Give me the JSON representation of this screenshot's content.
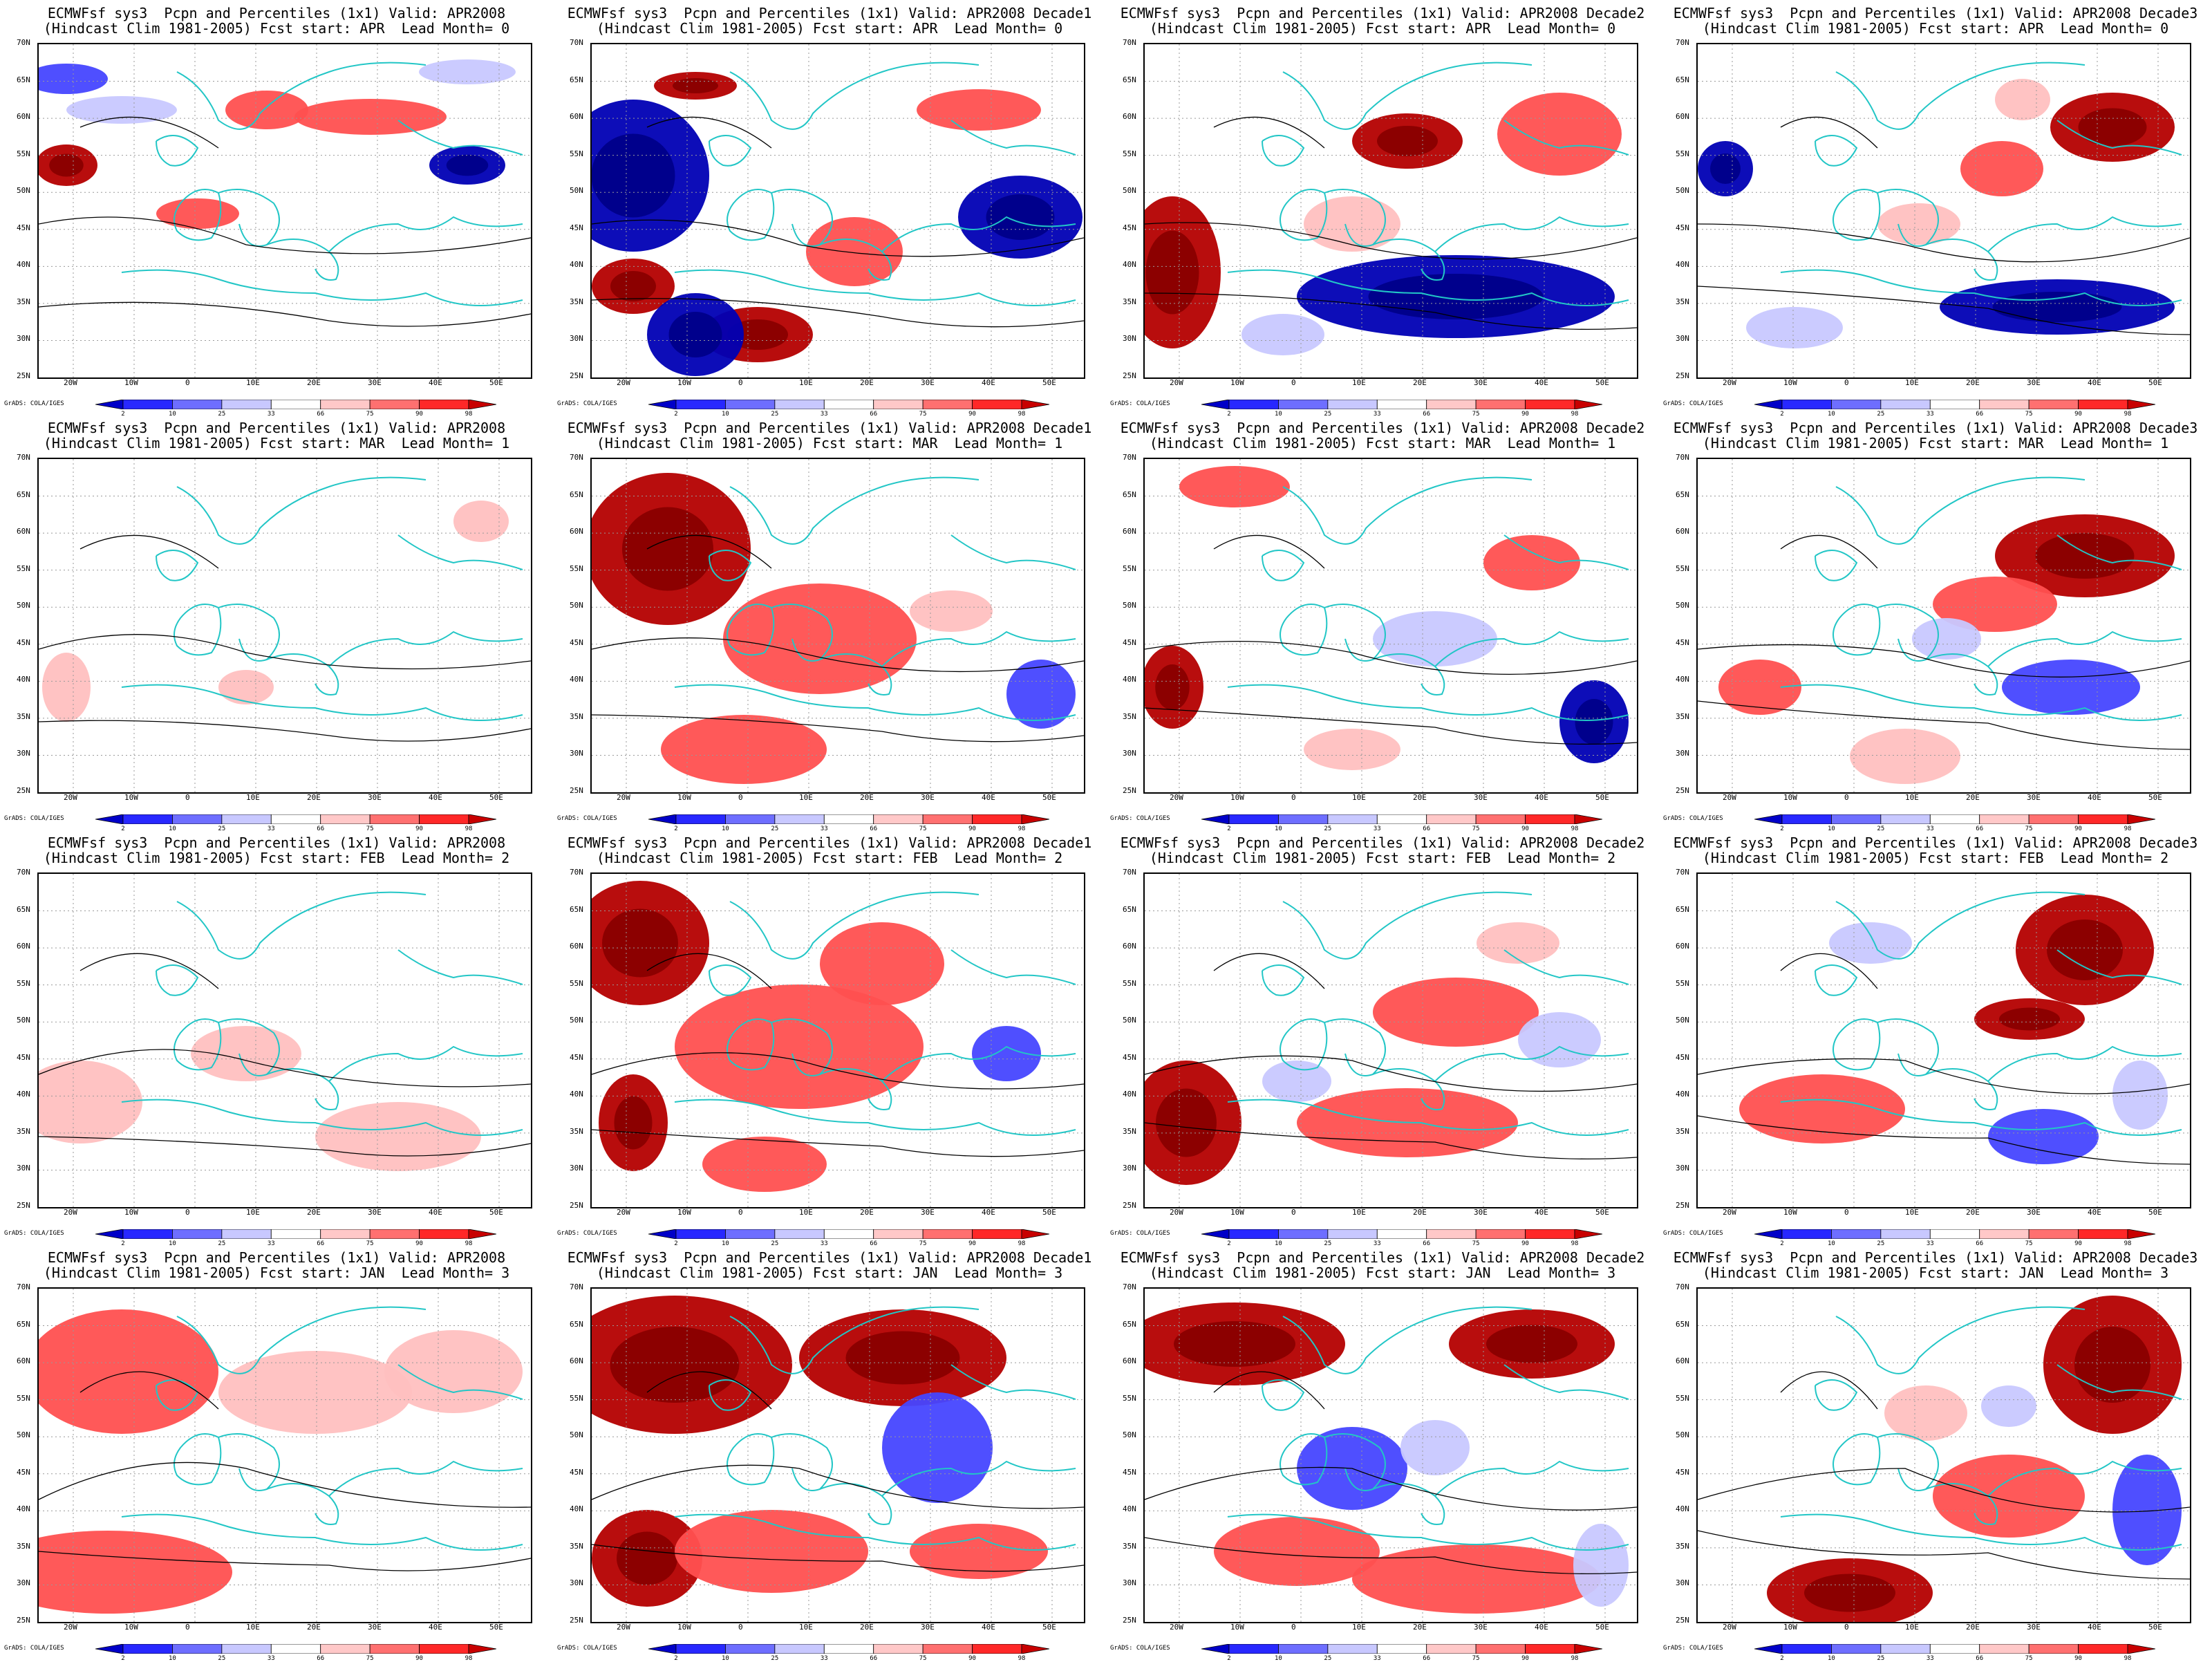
{
  "grid": {
    "rows": [
      {
        "title2": "(Hindcast Clim 1981-2005) Fcst start: APR  Lead Month= 0",
        "panels": [
          {
            "title1": "ECMWFsf sys3  Pcpn and Percentiles (1x1) Valid: APR2008"
          },
          {
            "title1": "ECMWFsf sys3  Pcpn and Percentiles (1x1) Valid: APR2008 Decade1"
          },
          {
            "title1": "ECMWFsf sys3  Pcpn and Percentiles (1x1) Valid: APR2008 Decade2"
          },
          {
            "title1": "ECMWFsf sys3  Pcpn and Percentiles (1x1) Valid: APR2008 Decade3"
          }
        ]
      },
      {
        "title2": "(Hindcast Clim 1981-2005) Fcst start: MAR  Lead Month= 1",
        "panels": [
          {
            "title1": "ECMWFsf sys3  Pcpn and Percentiles (1x1) Valid: APR2008"
          },
          {
            "title1": "ECMWFsf sys3  Pcpn and Percentiles (1x1) Valid: APR2008 Decade1"
          },
          {
            "title1": "ECMWFsf sys3  Pcpn and Percentiles (1x1) Valid: APR2008 Decade2"
          },
          {
            "title1": "ECMWFsf sys3  Pcpn and Percentiles (1x1) Valid: APR2008 Decade3"
          }
        ]
      },
      {
        "title2": "(Hindcast Clim 1981-2005) Fcst start: FEB  Lead Month= 2",
        "panels": [
          {
            "title1": "ECMWFsf sys3  Pcpn and Percentiles (1x1) Valid: APR2008"
          },
          {
            "title1": "ECMWFsf sys3  Pcpn and Percentiles (1x1) Valid: APR2008 Decade1"
          },
          {
            "title1": "ECMWFsf sys3  Pcpn and Percentiles (1x1) Valid: APR2008 Decade2"
          },
          {
            "title1": "ECMWFsf sys3  Pcpn and Percentiles (1x1) Valid: APR2008 Decade3"
          }
        ]
      },
      {
        "title2": "(Hindcast Clim 1981-2005) Fcst start: JAN  Lead Month= 3",
        "panels": [
          {
            "title1": "ECMWFsf sys3  Pcpn and Percentiles (1x1) Valid: APR2008"
          },
          {
            "title1": "ECMWFsf sys3  Pcpn and Percentiles (1x1) Valid: APR2008 Decade1"
          },
          {
            "title1": "ECMWFsf sys3  Pcpn and Percentiles (1x1) Valid: APR2008 Decade2"
          },
          {
            "title1": "ECMWFsf sys3  Pcpn and Percentiles (1x1) Valid: APR2008 Decade3"
          }
        ]
      }
    ]
  },
  "axes": {
    "lat_labels": [
      "70N",
      "65N",
      "60N",
      "55N",
      "50N",
      "45N",
      "40N",
      "35N",
      "30N",
      "25N"
    ],
    "lon_labels": [
      "20W",
      "10W",
      "0",
      "10E",
      "20E",
      "30E",
      "40E",
      "50E"
    ]
  },
  "colorbar": {
    "labels": [
      "2",
      "10",
      "25",
      "33",
      "66",
      "75",
      "90",
      "98"
    ],
    "colors": [
      "#0000c8",
      "#2828ff",
      "#6e6eff",
      "#c8c8ff",
      "#ffffff",
      "#ffc8c8",
      "#ff7070",
      "#ff2828",
      "#c80000"
    ]
  },
  "credit": "GrADS: COLA/IGES",
  "colors": {
    "coastline": "#22c6c6",
    "contour": "#000000",
    "very_wet": "#b40000",
    "wet": "#ff5050",
    "slightly_wet": "#ffc0c0",
    "slightly_dry": "#c8c8ff",
    "dry": "#4646ff",
    "very_dry": "#0000b4"
  }
}
